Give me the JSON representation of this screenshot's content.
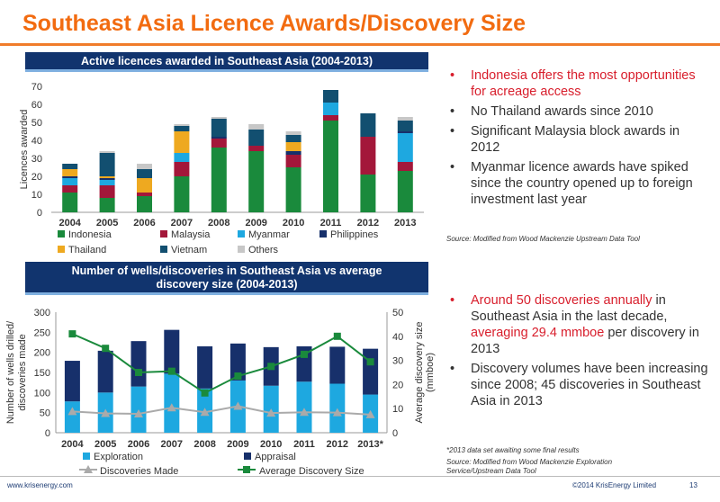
{
  "slide": {
    "title": "Southeast Asia Licence Awards/Discovery Size",
    "footer": {
      "website": "www.krisenergy.com",
      "copyright": "©2014 KrisEnergy Limited",
      "page": "13"
    }
  },
  "chart1": {
    "banner": "Active licences awarded in Southeast Asia (2004-2013)",
    "source": "Source: Modified from Wood Mackenzie Upstream Data Tool",
    "colors": {
      "Indonesia": "#1a8a3c",
      "Malaysia": "#a3173a",
      "Myanmar": "#1ea8e0",
      "Philippines": "#17306b",
      "Thailand": "#eea920",
      "Vietnam": "#124f70",
      "Others": "#c7c7c7"
    }
  },
  "chart2": {
    "banner_line1": "Number of wells/discoveries in Southeast Asia vs average",
    "banner_line2": "discovery size (2004-2013)",
    "footnote": "*2013 data set awaiting some final results",
    "source_line1": "Source: Modified from Wood Mackenzie Exploration",
    "source_line2": "Service/Upstream Data Tool",
    "colors": {
      "Exploration": "#1ea8e0",
      "Appraisal": "#17306b",
      "Discoveries Made": "#aaaaaa",
      "Average Discovery Size": "#1a8a3c"
    }
  },
  "bullets1": [
    {
      "text": "Indonesia offers the most opportunities for acreage access",
      "highlight": true
    },
    {
      "text": "No Thailand awards since 2010",
      "highlight": false
    },
    {
      "text": "Significant Malaysia block awards in 2012",
      "highlight": false
    },
    {
      "text": "Myanmar licence awards have spiked since the country opened up to foreign investment last year",
      "highlight": false
    }
  ],
  "bullets2": {
    "b1_red1": "Around 50 discoveries annually",
    "b1_txt1": " in Southeast Asia in the last decade, ",
    "b1_red2": "averaging 29.4 mmboe",
    "b1_txt2": " per discovery in 2013",
    "b2": "Discovery volumes have been increasing since 2008; 45 discoveries in Southeast Asia in 2013"
  },
  "chart_data": [
    {
      "type": "bar",
      "stacked": true,
      "categories": [
        "2004",
        "2005",
        "2006",
        "2007",
        "2008",
        "2009",
        "2010",
        "2011",
        "2012",
        "2013"
      ],
      "ylabel": "Licences awarded",
      "ylim": [
        0,
        70
      ],
      "yticks": [
        0,
        10,
        20,
        30,
        40,
        50,
        60,
        70
      ],
      "legend": "bottom",
      "series": [
        {
          "name": "Indonesia",
          "values": [
            11,
            8,
            9,
            20,
            36,
            34,
            25,
            51,
            21,
            23
          ]
        },
        {
          "name": "Malaysia",
          "values": [
            4,
            7,
            2,
            8,
            5,
            3,
            7,
            3,
            21,
            5
          ]
        },
        {
          "name": "Myanmar",
          "values": [
            4,
            3,
            0,
            5,
            0,
            0,
            0,
            7,
            0,
            16
          ]
        },
        {
          "name": "Philippines",
          "values": [
            1,
            1,
            0,
            0,
            1,
            0,
            2,
            0,
            0,
            1
          ]
        },
        {
          "name": "Thailand",
          "values": [
            4,
            1,
            8,
            12,
            0,
            0,
            5,
            0,
            0,
            0
          ]
        },
        {
          "name": "Vietnam",
          "values": [
            3,
            13,
            5,
            3,
            10,
            9,
            4,
            7,
            13,
            6
          ]
        },
        {
          "name": "Others",
          "values": [
            0,
            1,
            3,
            1,
            1,
            3,
            2,
            0,
            0,
            2
          ]
        }
      ]
    },
    {
      "type": "bar",
      "stacked": true,
      "categories": [
        "2004",
        "2005",
        "2006",
        "2007",
        "2008",
        "2009",
        "2010",
        "2011",
        "2012",
        "2013*"
      ],
      "ylabel": "Number of wells drilled/ discoveries made",
      "ylim": [
        0,
        300
      ],
      "yticks": [
        0,
        50,
        100,
        150,
        200,
        250,
        300
      ],
      "y2label": "Average discovery size (mmboe)",
      "y2lim": [
        0,
        50
      ],
      "y2ticks": [
        0,
        10,
        20,
        30,
        40,
        50
      ],
      "legend": "bottom",
      "series": [
        {
          "name": "Exploration",
          "kind": "bar",
          "axis": "left",
          "values": [
            78,
            100,
            115,
            147,
            110,
            130,
            117,
            127,
            122,
            95
          ]
        },
        {
          "name": "Appraisal",
          "kind": "bar",
          "axis": "left",
          "values": [
            101,
            104,
            113,
            109,
            105,
            92,
            96,
            88,
            92,
            114
          ]
        },
        {
          "name": "Discoveries Made",
          "kind": "line",
          "axis": "left",
          "values": [
            53,
            48,
            47,
            62,
            51,
            66,
            49,
            51,
            50,
            45
          ]
        },
        {
          "name": "Average Discovery Size",
          "kind": "line",
          "axis": "right",
          "values": [
            41,
            35,
            25,
            25.5,
            16.5,
            23.5,
            27.5,
            32.5,
            40,
            29.4
          ]
        }
      ]
    }
  ]
}
